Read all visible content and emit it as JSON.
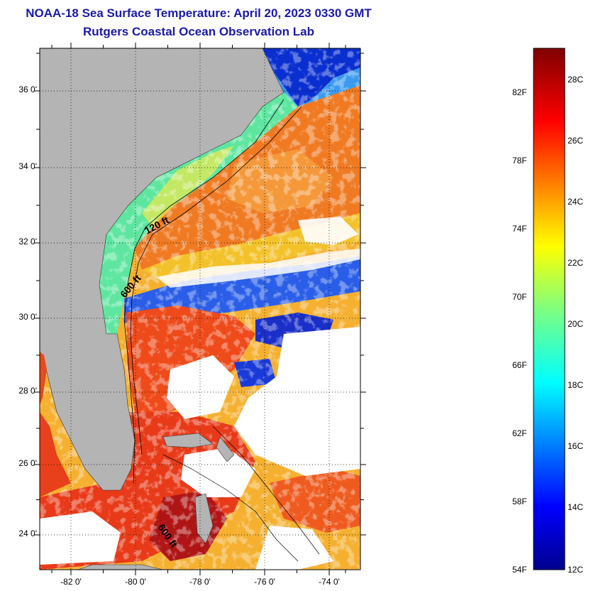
{
  "header": {
    "title": "NOAA-18 Sea Surface Temperature:  April 20, 2023 0330 GMT",
    "subtitle": "Rutgers Coastal Ocean Observation Lab"
  },
  "map": {
    "lat_labels": [
      "36 0'",
      "34 0'",
      "32 0'",
      "30 0'",
      "28 0'",
      "26 0'",
      "24 0'"
    ],
    "lon_labels": [
      "-82 0'",
      "-80 0'",
      "-78 0'",
      "-76 0'",
      "-74 0'"
    ],
    "contour_labels": [
      "120 ft",
      "600 ft",
      "600 ft"
    ],
    "colors": {
      "land": "#b4b4b4",
      "cloud": "#ffffff",
      "gulf_stream": "#f07020",
      "shelf_water": "#5ee6a0"
    }
  },
  "colorbar": {
    "fahrenheit_labels": [
      "82F",
      "78F",
      "74F",
      "70F",
      "66F",
      "62F",
      "58F",
      "54F"
    ],
    "celsius_labels": [
      "28C",
      "26C",
      "24C",
      "22C",
      "20C",
      "18C",
      "16C",
      "14C",
      "12C"
    ]
  }
}
